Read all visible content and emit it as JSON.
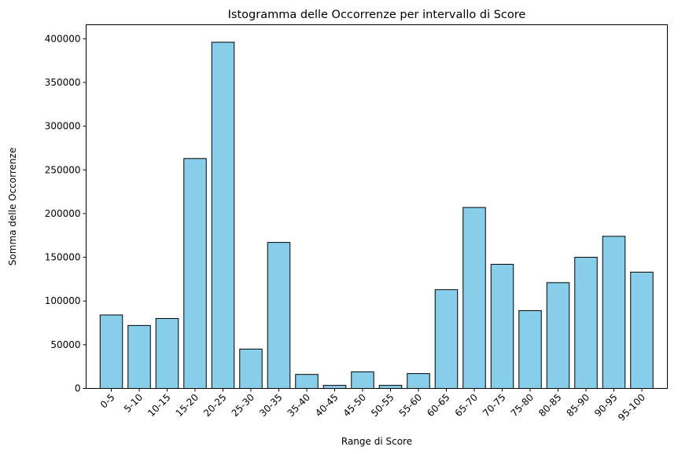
{
  "chart_data": {
    "type": "bar",
    "title": "Istogramma delle Occorrenze per intervallo di Score",
    "xlabel": "Range di Score",
    "ylabel": "Somma delle Occorrenze",
    "categories": [
      "0-5",
      "5-10",
      "10-15",
      "15-20",
      "20-25",
      "25-30",
      "30-35",
      "35-40",
      "40-45",
      "45-50",
      "50-55",
      "55-60",
      "60-65",
      "65-70",
      "70-75",
      "75-80",
      "80-85",
      "85-90",
      "90-95",
      "95-100"
    ],
    "values": [
      84000,
      72000,
      80000,
      263000,
      396000,
      45000,
      167000,
      16000,
      3500,
      19000,
      3500,
      17000,
      113000,
      207000,
      142000,
      89000,
      121000,
      150000,
      174000,
      133000
    ],
    "ylim": [
      0,
      416000
    ],
    "yticks": [
      0,
      50000,
      100000,
      150000,
      200000,
      250000,
      300000,
      350000,
      400000
    ],
    "grid": false,
    "bar_color": "#87CEEB",
    "edge_color": "#000000"
  }
}
